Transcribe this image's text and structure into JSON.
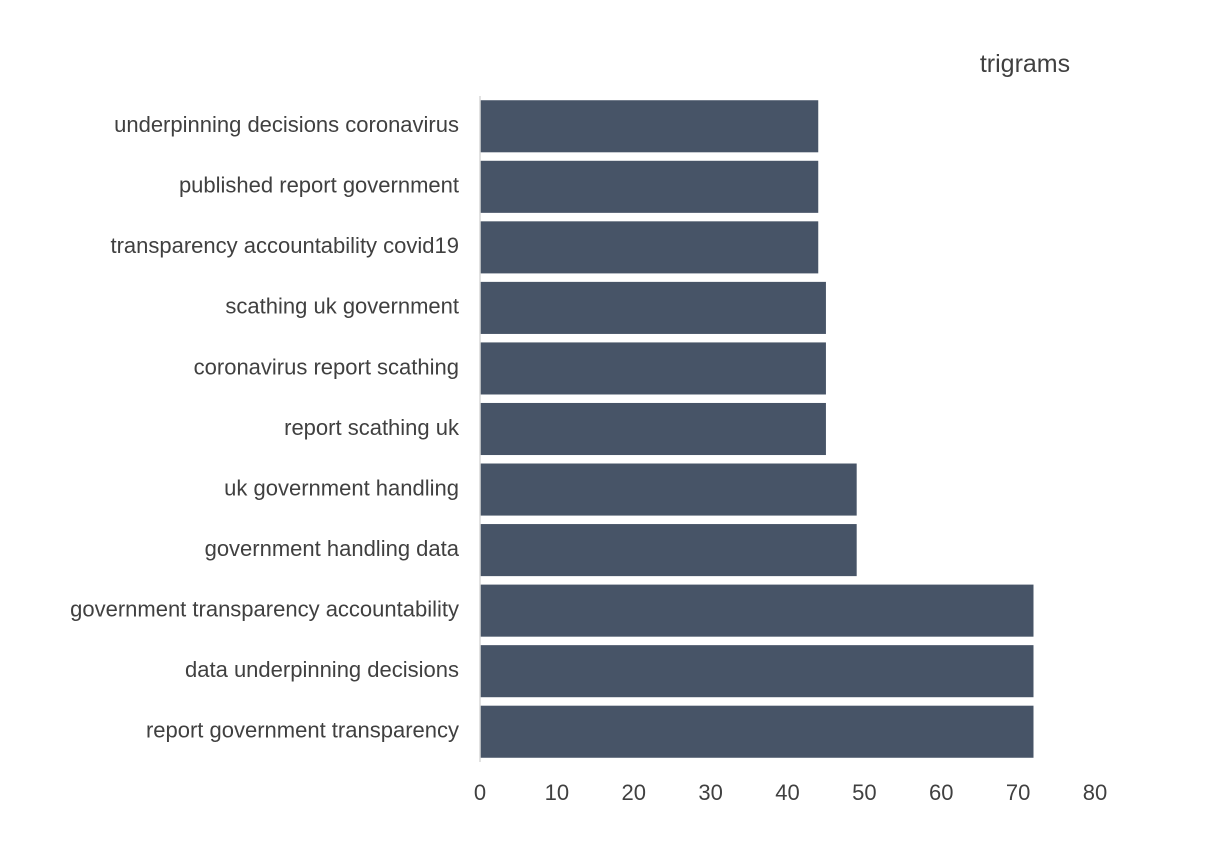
{
  "chart_data": {
    "type": "bar",
    "orientation": "horizontal",
    "title": "trigrams",
    "xlabel": "",
    "ylabel": "",
    "categories": [
      "underpinning decisions coronavirus",
      "published report government",
      "transparency accountability covid19",
      "scathing uk government",
      "coronavirus report scathing",
      "report scathing uk",
      "uk government handling",
      "government handling data",
      "government transparency accountability",
      "data underpinning decisions",
      "report government transparency"
    ],
    "values": [
      44,
      44,
      44,
      45,
      45,
      45,
      49,
      49,
      72,
      72,
      72
    ],
    "xlim": [
      0,
      80
    ],
    "xticks": [
      "0",
      "10",
      "20",
      "30",
      "40",
      "50",
      "60",
      "70",
      "80"
    ],
    "grid": false,
    "legend": "none",
    "bar_color": "#475467",
    "axis_color": "#d9d9d9",
    "text_color": "#404040"
  }
}
